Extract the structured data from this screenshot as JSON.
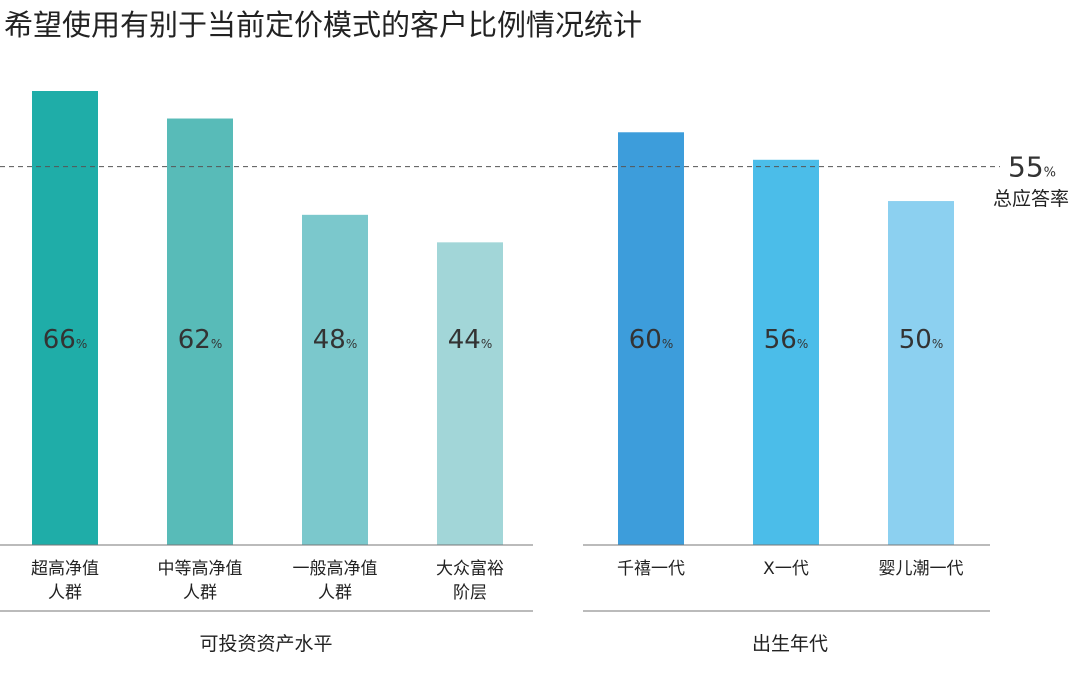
{
  "chart_data": {
    "type": "bar",
    "title": "希望使用有别于当前定价模式的客户比例情况统计",
    "ylim": [
      0,
      66
    ],
    "grid": false,
    "unit": "%",
    "reference_line": {
      "value": 55,
      "value_label": "55",
      "unit": "%",
      "label": "总应答率",
      "style": "dashed"
    },
    "groups": [
      {
        "name": "可投资资产水平",
        "categories": [
          [
            "超高净值",
            "人群"
          ],
          [
            "中等高净值",
            "人群"
          ],
          [
            "一般高净值",
            "人群"
          ],
          [
            "大众富裕",
            "阶层"
          ]
        ],
        "values": [
          66,
          62,
          48,
          44
        ],
        "colors": [
          "#1fada8",
          "#58bbb8",
          "#7bc8cc",
          "#a2d6d8"
        ]
      },
      {
        "name": "出生年代",
        "categories": [
          [
            "千禧一代"
          ],
          [
            "X一代"
          ],
          [
            "婴儿潮一代"
          ]
        ],
        "values": [
          60,
          56,
          50
        ],
        "colors": [
          "#3d9ddb",
          "#4bbde9",
          "#8cd0f0"
        ]
      }
    ]
  }
}
